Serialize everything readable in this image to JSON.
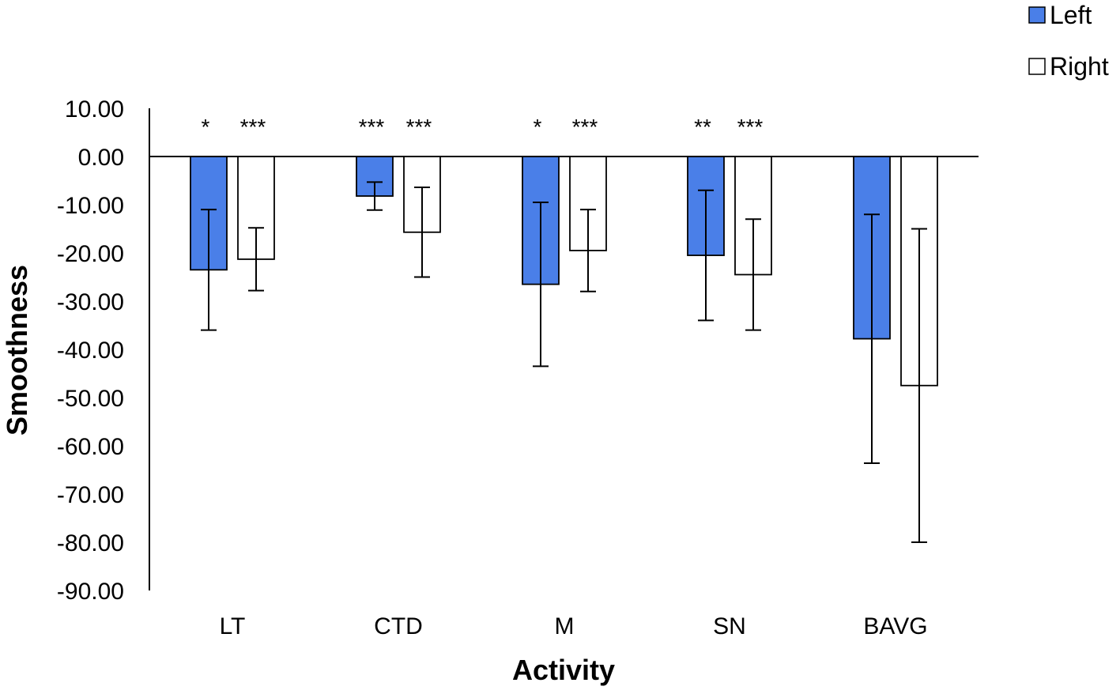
{
  "chart_data": {
    "type": "bar",
    "title": "",
    "xlabel": "Activity",
    "ylabel": "Smoothness",
    "categories": [
      "LT",
      "CTD",
      "M",
      "SN",
      "BAVG"
    ],
    "ylim": [
      -90,
      10
    ],
    "yticks": [
      10,
      0,
      -10,
      -20,
      -30,
      -40,
      -50,
      -60,
      -70,
      -80,
      -90
    ],
    "ytick_labels": [
      "10.00",
      "0.00",
      "-10.00",
      "-20.00",
      "-30.00",
      "-40.00",
      "-50.00",
      "-60.00",
      "-70.00",
      "-80.00",
      "-90.00"
    ],
    "grid": false,
    "legend_position": "top-right",
    "series": [
      {
        "name": "Left",
        "color": "#4a7fe8",
        "values": [
          -23.5,
          -8.2,
          -26.5,
          -20.5,
          -37.8
        ],
        "error": [
          12.5,
          2.9,
          17.0,
          13.5,
          25.8
        ],
        "significance": [
          "*",
          "***",
          "*",
          "**",
          ""
        ]
      },
      {
        "name": "Right",
        "color": "#ffffff",
        "values": [
          -21.3,
          -15.7,
          -19.5,
          -24.5,
          -47.5
        ],
        "error": [
          6.5,
          9.3,
          8.5,
          11.5,
          32.5
        ],
        "significance": [
          "***",
          "***",
          "***",
          "***",
          ""
        ]
      }
    ]
  }
}
